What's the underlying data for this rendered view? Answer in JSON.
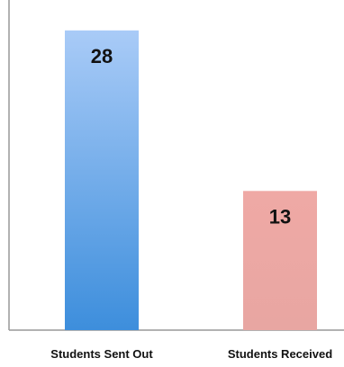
{
  "chart_data": {
    "type": "bar",
    "categories": [
      "Students Sent Out",
      "Students Received"
    ],
    "values": [
      28,
      13
    ],
    "ylim": [
      0,
      30
    ],
    "grid": false,
    "title": "",
    "xlabel": "",
    "ylabel": "",
    "data_labels": [
      "28",
      "13"
    ],
    "colors": {
      "bars": [
        {
          "top": "#a9cbf7",
          "bottom": "#3d8edc"
        },
        {
          "top": "#efa9a5",
          "bottom": "#e8a6a2"
        }
      ],
      "axis": "#999999"
    }
  }
}
